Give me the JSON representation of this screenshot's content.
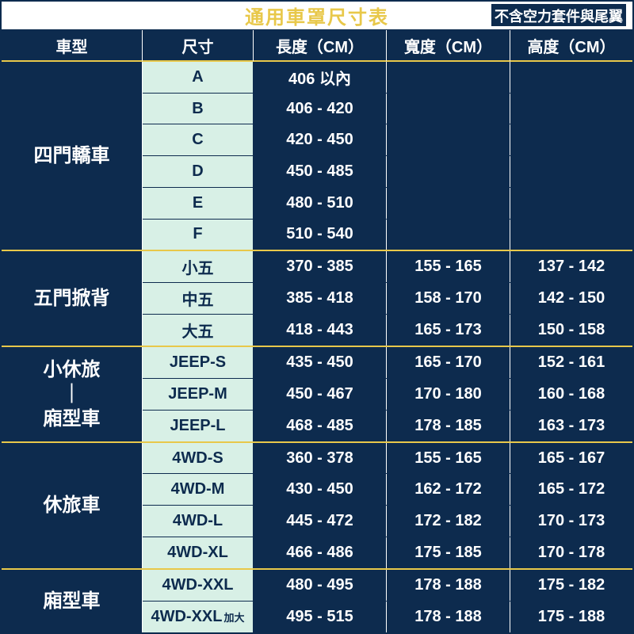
{
  "colors": {
    "dark_bg": "#0d2b4e",
    "header_bg": "#0d2b4e",
    "title_bg": "#ffffff",
    "title_color": "#e8c84a",
    "note_bg": "#0d2b4e",
    "note_color": "#ffffff",
    "size_col_bg": "#d8f0e6",
    "size_col_text": "#0d2b4e",
    "accent_border": "#e8c84a"
  },
  "title": {
    "main": "通用車罩尺寸表",
    "note": "不含空力套件與尾翼"
  },
  "columns": {
    "type": "車型",
    "size": "尺寸",
    "length": "長度（CM）",
    "width": "寬度（CM）",
    "height": "高度（CM）"
  },
  "groups": [
    {
      "type": "四門轎車",
      "rows": [
        {
          "size": "A",
          "length": "406 以內",
          "width": "",
          "height": ""
        },
        {
          "size": "B",
          "length": "406 - 420",
          "width": "",
          "height": ""
        },
        {
          "size": "C",
          "length": "420 - 450",
          "width": "",
          "height": ""
        },
        {
          "size": "D",
          "length": "450 - 485",
          "width": "",
          "height": ""
        },
        {
          "size": "E",
          "length": "480 - 510",
          "width": "",
          "height": ""
        },
        {
          "size": "F",
          "length": "510 - 540",
          "width": "",
          "height": ""
        }
      ]
    },
    {
      "type": "五門掀背",
      "rows": [
        {
          "size": "小五",
          "length": "370 - 385",
          "width": "155 - 165",
          "height": "137 - 142"
        },
        {
          "size": "中五",
          "length": "385 - 418",
          "width": "158 - 170",
          "height": "142 - 150"
        },
        {
          "size": "大五",
          "length": "418 - 443",
          "width": "165 - 173",
          "height": "150 - 158"
        }
      ]
    },
    {
      "type": "小休旅\n｜\n廂型車",
      "rows": [
        {
          "size": "JEEP-S",
          "length": "435 - 450",
          "width": "165 - 170",
          "height": "152 - 161"
        },
        {
          "size": "JEEP-M",
          "length": "450 - 467",
          "width": "170 - 180",
          "height": "160 - 168"
        },
        {
          "size": "JEEP-L",
          "length": "468 - 485",
          "width": "178 - 185",
          "height": "163 - 173"
        }
      ]
    },
    {
      "type": "休旅車",
      "rows": [
        {
          "size": "4WD-S",
          "length": "360 - 378",
          "width": "155 - 165",
          "height": "165 - 167"
        },
        {
          "size": "4WD-M",
          "length": "430 - 450",
          "width": "162 - 172",
          "height": "165 - 172"
        },
        {
          "size": "4WD-L",
          "length": "445 - 472",
          "width": "172 - 182",
          "height": "170 - 173"
        },
        {
          "size": "4WD-XL",
          "length": "466 - 486",
          "width": "175 - 185",
          "height": "170 - 178"
        }
      ]
    },
    {
      "type": "廂型車",
      "rows": [
        {
          "size": "4WD-XXL",
          "size_sub": "",
          "length": "480 - 495",
          "width": "178 - 188",
          "height": "175 - 182"
        },
        {
          "size": "4WD-XXL",
          "size_sub": "加大",
          "length": "495 - 515",
          "width": "178 - 188",
          "height": "175 - 188"
        }
      ]
    }
  ]
}
